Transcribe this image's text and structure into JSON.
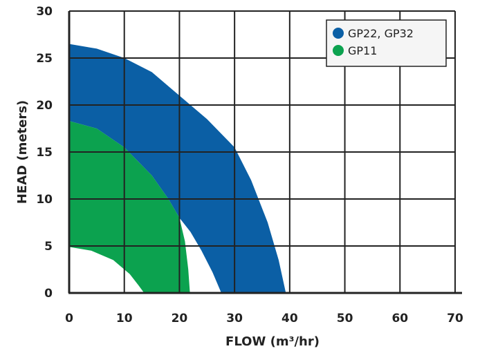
{
  "chart_data": {
    "type": "area",
    "xlabel": "FLOW (m³/hr)",
    "ylabel": "HEAD (meters)",
    "xlim": [
      0,
      70
    ],
    "ylim": [
      0,
      30
    ],
    "x_ticks": [
      0,
      10,
      20,
      30,
      40,
      50,
      60,
      70
    ],
    "y_ticks": [
      0,
      5,
      10,
      15,
      20,
      25,
      30
    ],
    "grid": true,
    "legend_position": "top-right",
    "series": [
      {
        "name": "GP22, GP32",
        "color": "#0b5fa5",
        "outer_curve": {
          "x": [
            0,
            5,
            10,
            15,
            20,
            25,
            30,
            33,
            36,
            38,
            39.3
          ],
          "y": [
            26.5,
            26,
            25,
            23.5,
            21,
            18.5,
            15.5,
            12,
            7.5,
            3.5,
            0
          ]
        },
        "inner_curve": {
          "x": [
            0,
            5,
            10,
            15,
            18,
            20,
            22,
            24,
            26,
            27.6
          ],
          "y": [
            18.3,
            17.5,
            15.5,
            12.5,
            10,
            8,
            6.5,
            4.5,
            2.2,
            0
          ]
        }
      },
      {
        "name": "GP11",
        "color": "#0ca24f",
        "outer_curve": {
          "x": [
            0,
            5,
            10,
            15,
            18,
            20,
            21,
            21.6,
            21.9
          ],
          "y": [
            18.3,
            17.5,
            15.5,
            12.5,
            10,
            8,
            5.5,
            2.5,
            0
          ]
        },
        "inner_curve": {
          "x": [
            0,
            4,
            8,
            11,
            12.6,
            13.6
          ],
          "y": [
            4.9,
            4.5,
            3.5,
            2,
            0.8,
            0
          ]
        }
      }
    ]
  }
}
